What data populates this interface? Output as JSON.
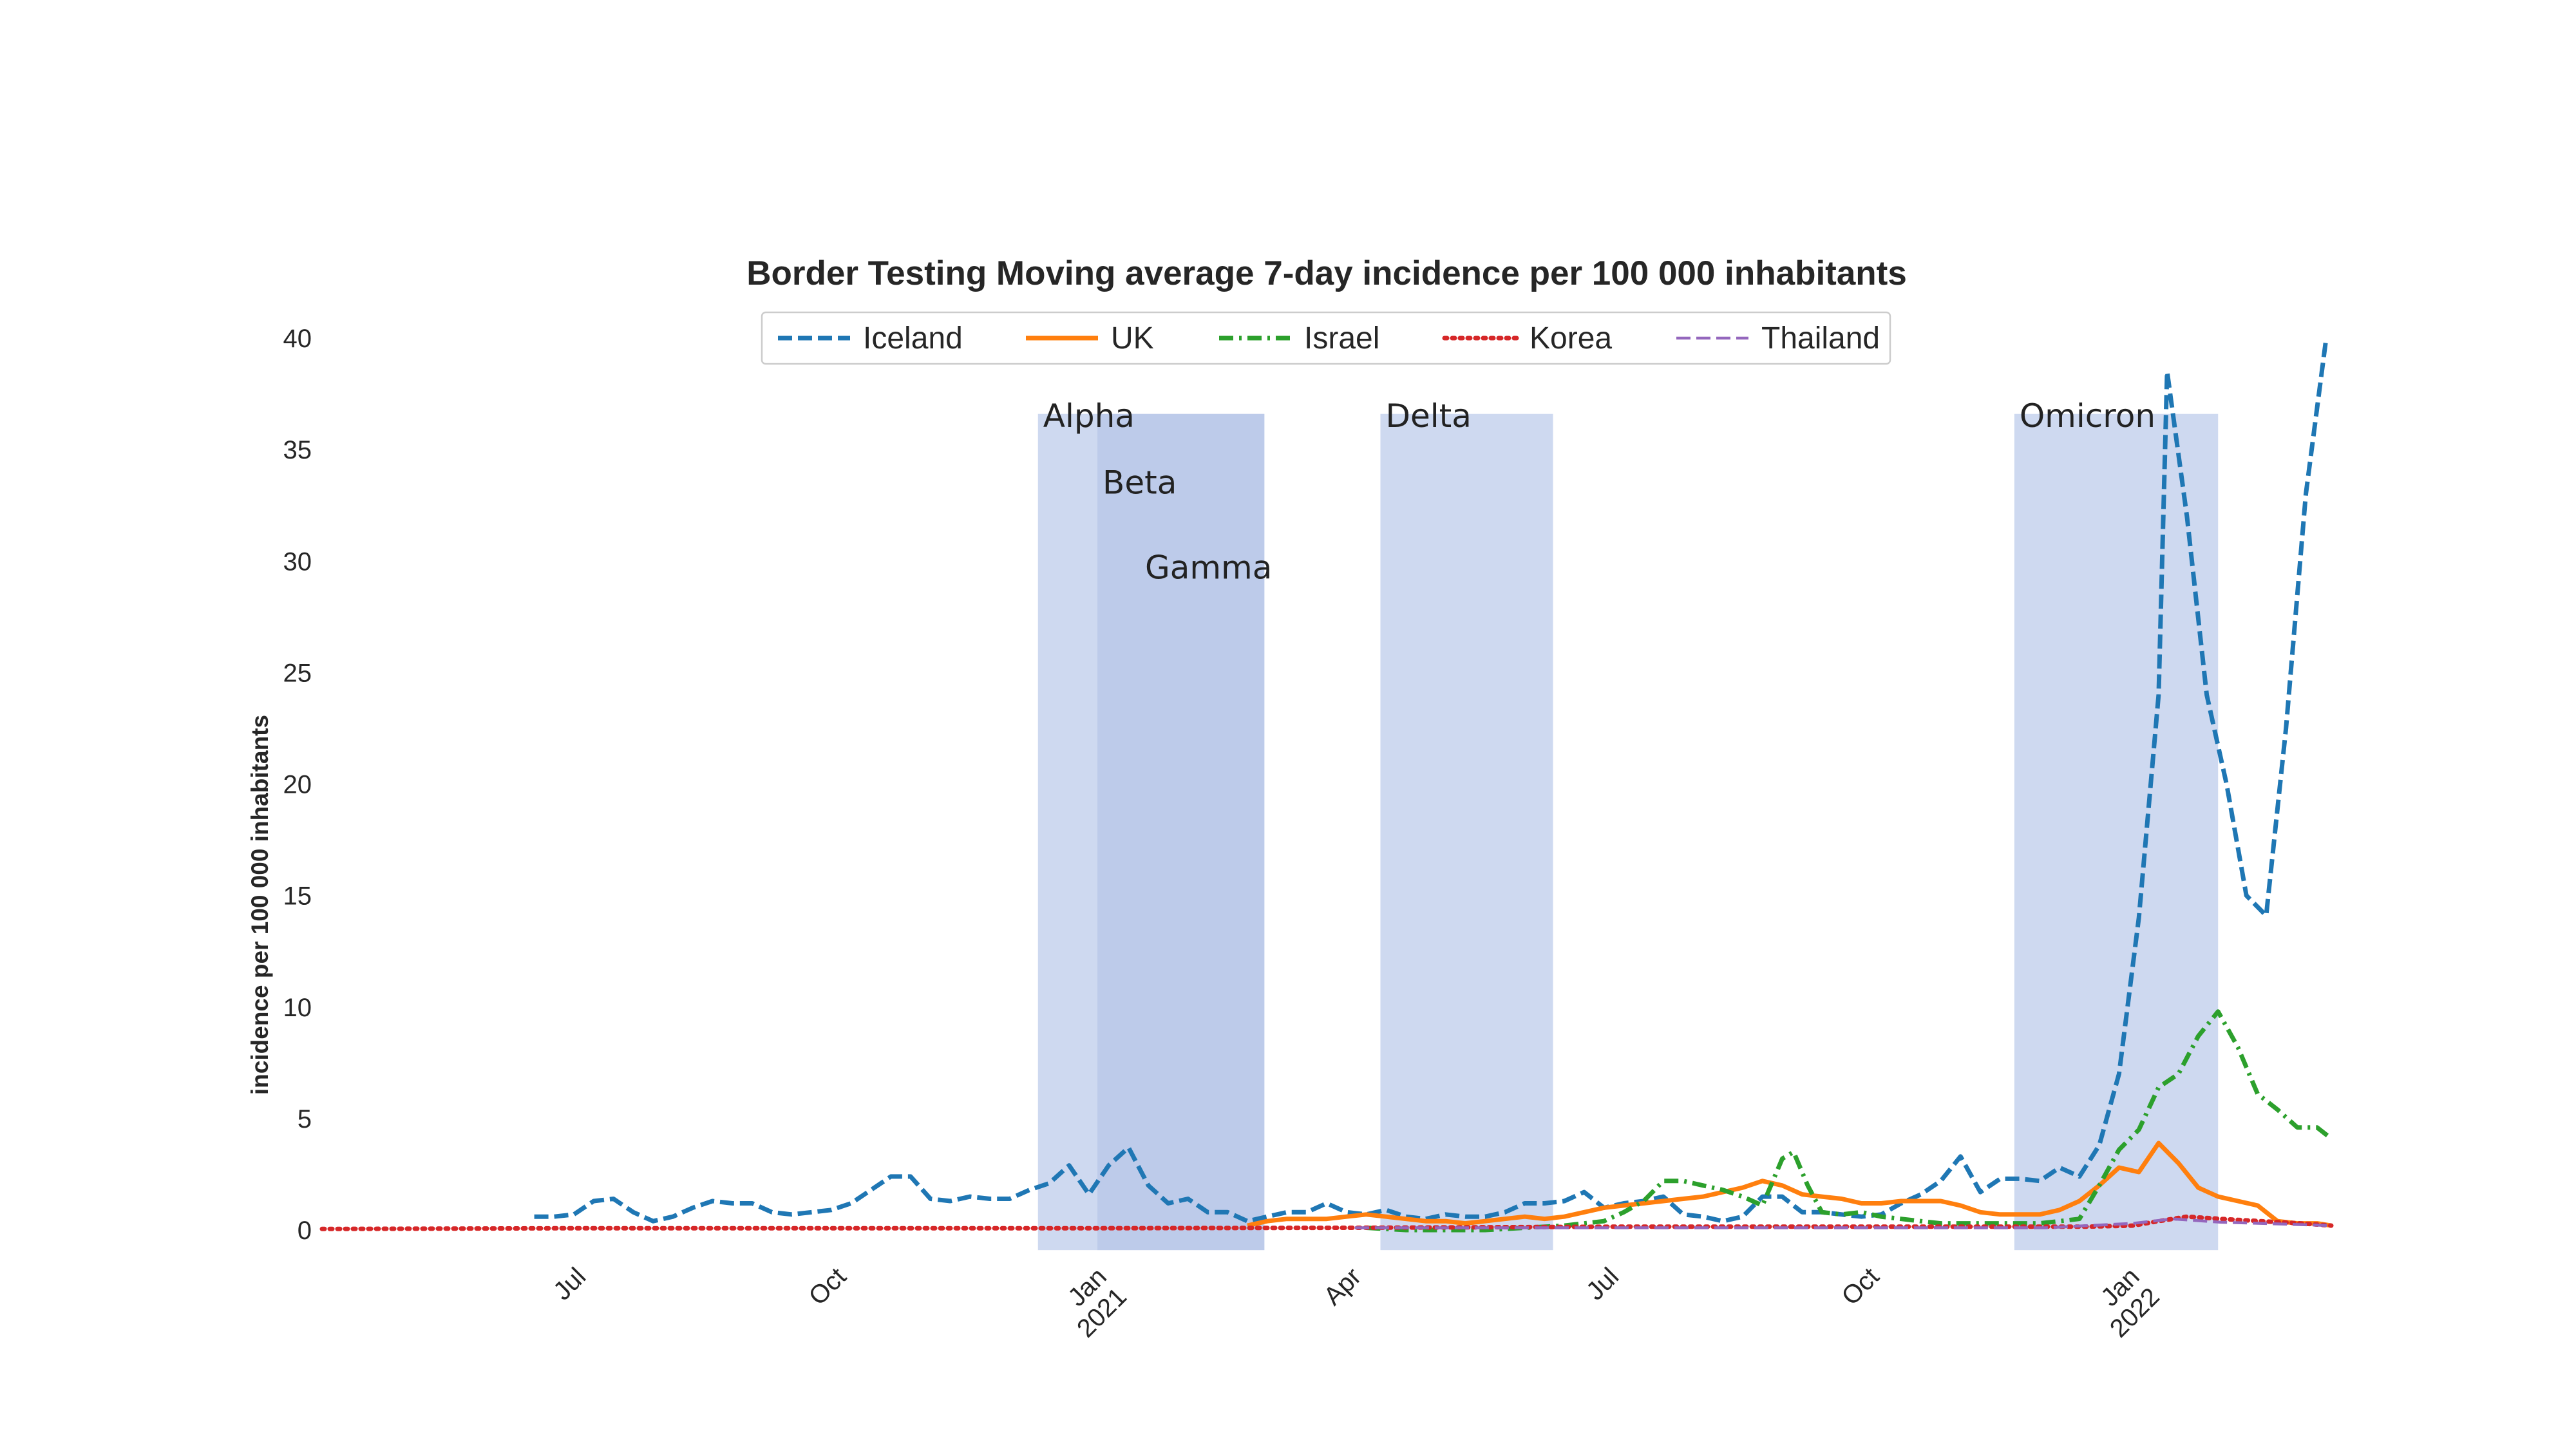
{
  "chart_data": {
    "type": "line",
    "title": "Border Testing Moving average 7-day incidence per 100 000 inhabitants",
    "xlabel": "",
    "ylabel": "incidence per 100 000 inhabitants",
    "xlim": [
      "2020-04-01",
      "2022-03-12"
    ],
    "ylim": [
      0,
      40
    ],
    "yticks": [
      0,
      5,
      10,
      15,
      20,
      25,
      30,
      35,
      40
    ],
    "xticks": [
      {
        "date": "2020-07-01",
        "label": "Jul"
      },
      {
        "date": "2020-10-01",
        "label": "Oct"
      },
      {
        "date": "2021-01-01",
        "label": "Jan",
        "label2": "2021"
      },
      {
        "date": "2021-04-01",
        "label": "Apr"
      },
      {
        "date": "2021-07-01",
        "label": "Jul"
      },
      {
        "date": "2021-10-01",
        "label": "Oct"
      },
      {
        "date": "2022-01-01",
        "label": "Jan",
        "label2": "2022"
      }
    ],
    "grid": false,
    "legend_position": "top-center",
    "bands": [
      {
        "label": "Alpha",
        "start": "2020-12-10",
        "end": "2021-02-28",
        "label_level": 35.5
      },
      {
        "label": "Beta",
        "start": "2020-12-31",
        "end": "2021-01-15",
        "label_level": 32.5
      },
      {
        "label": "Gamma",
        "start": "2021-01-15",
        "end": "2021-02-28",
        "label_level": 28.7
      },
      {
        "label": "Delta",
        "start": "2021-04-10",
        "end": "2021-06-10",
        "label_level": 35.5
      },
      {
        "label": "Omicron",
        "start": "2021-11-20",
        "end": "2022-01-31",
        "label_level": 35.5
      }
    ],
    "series": [
      {
        "name": "Iceland",
        "color": "#1f77b4",
        "dash": "dashed",
        "points": [
          [
            "2020-06-15",
            0.6
          ],
          [
            "2020-06-22",
            0.6
          ],
          [
            "2020-06-29",
            0.7
          ],
          [
            "2020-07-06",
            1.3
          ],
          [
            "2020-07-13",
            1.4
          ],
          [
            "2020-07-20",
            0.8
          ],
          [
            "2020-07-27",
            0.4
          ],
          [
            "2020-08-03",
            0.6
          ],
          [
            "2020-08-10",
            1.0
          ],
          [
            "2020-08-17",
            1.3
          ],
          [
            "2020-08-24",
            1.2
          ],
          [
            "2020-08-31",
            1.2
          ],
          [
            "2020-09-07",
            0.8
          ],
          [
            "2020-09-14",
            0.7
          ],
          [
            "2020-09-21",
            0.8
          ],
          [
            "2020-09-28",
            0.9
          ],
          [
            "2020-10-05",
            1.2
          ],
          [
            "2020-10-12",
            1.8
          ],
          [
            "2020-10-19",
            2.4
          ],
          [
            "2020-10-26",
            2.4
          ],
          [
            "2020-11-02",
            1.4
          ],
          [
            "2020-11-09",
            1.3
          ],
          [
            "2020-11-16",
            1.5
          ],
          [
            "2020-11-23",
            1.4
          ],
          [
            "2020-11-30",
            1.4
          ],
          [
            "2020-12-07",
            1.8
          ],
          [
            "2020-12-14",
            2.1
          ],
          [
            "2020-12-21",
            2.9
          ],
          [
            "2020-12-28",
            1.6
          ],
          [
            "2021-01-04",
            2.9
          ],
          [
            "2021-01-11",
            3.7
          ],
          [
            "2021-01-18",
            2.0
          ],
          [
            "2021-01-25",
            1.2
          ],
          [
            "2021-02-01",
            1.4
          ],
          [
            "2021-02-08",
            0.8
          ],
          [
            "2021-02-15",
            0.8
          ],
          [
            "2021-02-22",
            0.4
          ],
          [
            "2021-03-01",
            0.6
          ],
          [
            "2021-03-08",
            0.8
          ],
          [
            "2021-03-15",
            0.8
          ],
          [
            "2021-03-22",
            1.2
          ],
          [
            "2021-03-29",
            0.8
          ],
          [
            "2021-04-05",
            0.7
          ],
          [
            "2021-04-12",
            0.9
          ],
          [
            "2021-04-19",
            0.6
          ],
          [
            "2021-04-26",
            0.5
          ],
          [
            "2021-05-03",
            0.7
          ],
          [
            "2021-05-10",
            0.6
          ],
          [
            "2021-05-17",
            0.6
          ],
          [
            "2021-05-24",
            0.8
          ],
          [
            "2021-05-31",
            1.2
          ],
          [
            "2021-06-07",
            1.2
          ],
          [
            "2021-06-14",
            1.3
          ],
          [
            "2021-06-21",
            1.7
          ],
          [
            "2021-06-28",
            1.0
          ],
          [
            "2021-07-05",
            1.2
          ],
          [
            "2021-07-12",
            1.3
          ],
          [
            "2021-07-19",
            1.5
          ],
          [
            "2021-07-26",
            0.7
          ],
          [
            "2021-08-02",
            0.6
          ],
          [
            "2021-08-09",
            0.4
          ],
          [
            "2021-08-16",
            0.6
          ],
          [
            "2021-08-23",
            1.5
          ],
          [
            "2021-08-30",
            1.5
          ],
          [
            "2021-09-06",
            0.8
          ],
          [
            "2021-09-13",
            0.8
          ],
          [
            "2021-09-20",
            0.7
          ],
          [
            "2021-09-27",
            0.6
          ],
          [
            "2021-10-04",
            0.7
          ],
          [
            "2021-10-11",
            1.2
          ],
          [
            "2021-10-18",
            1.6
          ],
          [
            "2021-10-25",
            2.2
          ],
          [
            "2021-11-01",
            3.3
          ],
          [
            "2021-11-08",
            1.7
          ],
          [
            "2021-11-15",
            2.3
          ],
          [
            "2021-11-22",
            2.3
          ],
          [
            "2021-11-29",
            2.2
          ],
          [
            "2021-12-06",
            2.8
          ],
          [
            "2021-12-13",
            2.4
          ],
          [
            "2021-12-20",
            3.8
          ],
          [
            "2021-12-27",
            7.0
          ],
          [
            "2022-01-03",
            14.0
          ],
          [
            "2022-01-10",
            24.0
          ],
          [
            "2022-01-13",
            38.5
          ],
          [
            "2022-01-20",
            32.0
          ],
          [
            "2022-01-27",
            24.0
          ],
          [
            "2022-02-03",
            20.0
          ],
          [
            "2022-02-10",
            15.0
          ],
          [
            "2022-02-17",
            14.1
          ],
          [
            "2022-02-24",
            22.5
          ],
          [
            "2022-03-03",
            33.0
          ],
          [
            "2022-03-10",
            39.8
          ]
        ]
      },
      {
        "name": "UK",
        "color": "#ff7f0e",
        "dash": "solid",
        "points": [
          [
            "2021-02-22",
            0.2
          ],
          [
            "2021-03-01",
            0.4
          ],
          [
            "2021-03-08",
            0.5
          ],
          [
            "2021-03-15",
            0.5
          ],
          [
            "2021-03-22",
            0.5
          ],
          [
            "2021-03-29",
            0.6
          ],
          [
            "2021-04-05",
            0.7
          ],
          [
            "2021-04-12",
            0.6
          ],
          [
            "2021-04-19",
            0.5
          ],
          [
            "2021-04-26",
            0.4
          ],
          [
            "2021-05-03",
            0.4
          ],
          [
            "2021-05-10",
            0.3
          ],
          [
            "2021-05-17",
            0.4
          ],
          [
            "2021-05-24",
            0.5
          ],
          [
            "2021-05-31",
            0.6
          ],
          [
            "2021-06-07",
            0.5
          ],
          [
            "2021-06-14",
            0.6
          ],
          [
            "2021-06-21",
            0.8
          ],
          [
            "2021-06-28",
            1.0
          ],
          [
            "2021-07-05",
            1.1
          ],
          [
            "2021-07-12",
            1.2
          ],
          [
            "2021-07-19",
            1.3
          ],
          [
            "2021-07-26",
            1.4
          ],
          [
            "2021-08-02",
            1.5
          ],
          [
            "2021-08-09",
            1.7
          ],
          [
            "2021-08-16",
            1.9
          ],
          [
            "2021-08-23",
            2.2
          ],
          [
            "2021-08-30",
            2.0
          ],
          [
            "2021-09-06",
            1.6
          ],
          [
            "2021-09-13",
            1.5
          ],
          [
            "2021-09-20",
            1.4
          ],
          [
            "2021-09-27",
            1.2
          ],
          [
            "2021-10-04",
            1.2
          ],
          [
            "2021-10-11",
            1.3
          ],
          [
            "2021-10-18",
            1.3
          ],
          [
            "2021-10-25",
            1.3
          ],
          [
            "2021-11-01",
            1.1
          ],
          [
            "2021-11-08",
            0.8
          ],
          [
            "2021-11-15",
            0.7
          ],
          [
            "2021-11-22",
            0.7
          ],
          [
            "2021-11-29",
            0.7
          ],
          [
            "2021-12-06",
            0.9
          ],
          [
            "2021-12-13",
            1.3
          ],
          [
            "2021-12-20",
            2.0
          ],
          [
            "2021-12-27",
            2.8
          ],
          [
            "2022-01-03",
            2.6
          ],
          [
            "2022-01-10",
            3.9
          ],
          [
            "2022-01-17",
            3.0
          ],
          [
            "2022-01-24",
            1.9
          ],
          [
            "2022-01-31",
            1.5
          ],
          [
            "2022-02-07",
            1.3
          ],
          [
            "2022-02-14",
            1.1
          ],
          [
            "2022-02-21",
            0.4
          ],
          [
            "2022-02-28",
            0.3
          ],
          [
            "2022-03-07",
            0.3
          ],
          [
            "2022-03-12",
            0.2
          ]
        ]
      },
      {
        "name": "Israel",
        "color": "#2ca02c",
        "dash": "dashdot",
        "points": [
          [
            "2021-04-05",
            0.1
          ],
          [
            "2021-04-19",
            0.0
          ],
          [
            "2021-05-03",
            0.0
          ],
          [
            "2021-05-17",
            0.0
          ],
          [
            "2021-05-31",
            0.1
          ],
          [
            "2021-06-14",
            0.2
          ],
          [
            "2021-06-28",
            0.4
          ],
          [
            "2021-07-05",
            0.8
          ],
          [
            "2021-07-12",
            1.3
          ],
          [
            "2021-07-19",
            2.2
          ],
          [
            "2021-07-26",
            2.2
          ],
          [
            "2021-08-02",
            2.0
          ],
          [
            "2021-08-09",
            1.8
          ],
          [
            "2021-08-16",
            1.5
          ],
          [
            "2021-08-23",
            1.1
          ],
          [
            "2021-08-30",
            3.2
          ],
          [
            "2021-09-03",
            3.5
          ],
          [
            "2021-09-08",
            2.0
          ],
          [
            "2021-09-13",
            0.8
          ],
          [
            "2021-09-20",
            0.7
          ],
          [
            "2021-09-27",
            0.8
          ],
          [
            "2021-10-04",
            0.6
          ],
          [
            "2021-10-11",
            0.5
          ],
          [
            "2021-10-18",
            0.4
          ],
          [
            "2021-10-25",
            0.3
          ],
          [
            "2021-11-01",
            0.3
          ],
          [
            "2021-11-15",
            0.3
          ],
          [
            "2021-11-29",
            0.3
          ],
          [
            "2021-12-06",
            0.4
          ],
          [
            "2021-12-13",
            0.5
          ],
          [
            "2021-12-20",
            2.0
          ],
          [
            "2021-12-27",
            3.6
          ],
          [
            "2022-01-03",
            4.5
          ],
          [
            "2022-01-10",
            6.4
          ],
          [
            "2022-01-17",
            7.0
          ],
          [
            "2022-01-24",
            8.7
          ],
          [
            "2022-01-31",
            9.8
          ],
          [
            "2022-02-07",
            8.2
          ],
          [
            "2022-02-14",
            6.1
          ],
          [
            "2022-02-21",
            5.4
          ],
          [
            "2022-02-28",
            4.6
          ],
          [
            "2022-03-07",
            4.6
          ],
          [
            "2022-03-12",
            4.1
          ]
        ]
      },
      {
        "name": "Korea",
        "color": "#d62728",
        "dash": "dotted",
        "points": [
          [
            "2020-04-01",
            0.05
          ],
          [
            "2020-07-01",
            0.08
          ],
          [
            "2020-10-01",
            0.08
          ],
          [
            "2021-01-01",
            0.08
          ],
          [
            "2021-04-01",
            0.1
          ],
          [
            "2021-07-01",
            0.15
          ],
          [
            "2021-10-01",
            0.15
          ],
          [
            "2021-12-15",
            0.15
          ],
          [
            "2022-01-01",
            0.2
          ],
          [
            "2022-01-10",
            0.4
          ],
          [
            "2022-01-20",
            0.6
          ],
          [
            "2022-02-01",
            0.5
          ],
          [
            "2022-02-15",
            0.4
          ],
          [
            "2022-03-01",
            0.3
          ],
          [
            "2022-03-12",
            0.2
          ]
        ]
      },
      {
        "name": "Thailand",
        "color": "#9467bd",
        "dash": "dashed",
        "points": [
          [
            "2021-04-01",
            0.1
          ],
          [
            "2021-06-01",
            0.1
          ],
          [
            "2021-08-01",
            0.1
          ],
          [
            "2021-10-01",
            0.1
          ],
          [
            "2021-12-01",
            0.1
          ],
          [
            "2022-01-01",
            0.3
          ],
          [
            "2022-01-15",
            0.5
          ],
          [
            "2022-02-01",
            0.35
          ],
          [
            "2022-02-15",
            0.3
          ],
          [
            "2022-03-12",
            0.2
          ]
        ]
      }
    ]
  }
}
